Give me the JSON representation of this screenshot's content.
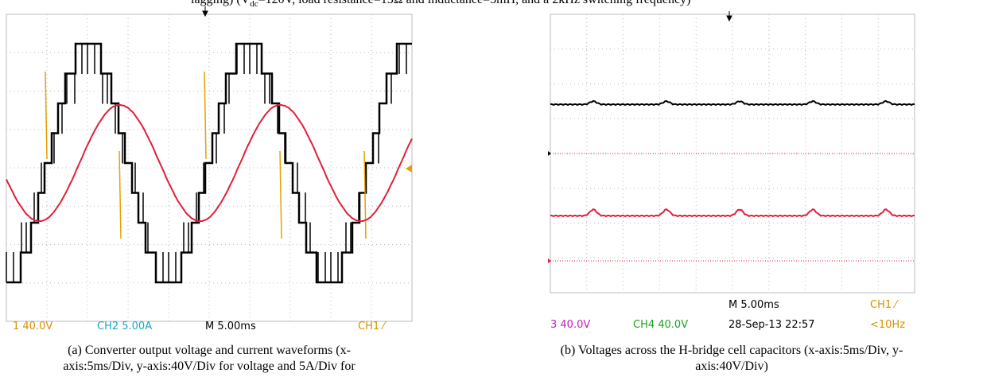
{
  "header": {
    "caption_prefix": "lagging) (V",
    "caption_sub": "dc",
    "caption_suffix": "=120V, load resistance=15Ω and inductance=5mH, and a 2kHz switching frequency)"
  },
  "panels": [
    {
      "readouts": [
        "1  40.0V",
        "CH2  5.00A",
        "M 5.00ms",
        "CH1 ⁄"
      ],
      "caption_lines": [
        "(a) Converter output voltage and current waveforms (x-",
        "axis:5ms/Div, y-axis:40V/Div for voltage and 5A/Div for"
      ]
    },
    {
      "readouts": [
        "M 5.00ms",
        "CH1 ⁄",
        "3  40.0V",
        "CH4  40.0V",
        "28-Sep-13 22:57",
        "<10Hz"
      ],
      "caption_lines": [
        "(b) Voltages across the H-bridge cell capacitors (x-axis:5ms/Div, y-",
        "axis:40V/Div)"
      ]
    }
  ]
}
